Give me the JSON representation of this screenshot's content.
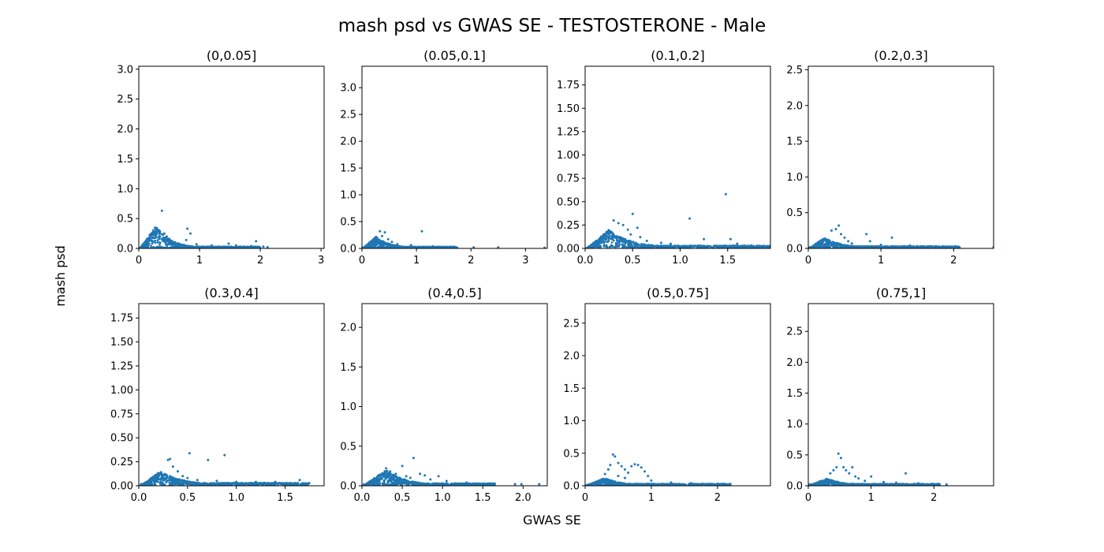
{
  "figure": {
    "title": "mash psd vs GWAS SE - TESTOSTERONE - Male",
    "xlabel": "GWAS SE",
    "ylabel": "mash psd"
  },
  "style": {
    "marker_color": "#1f77b4"
  },
  "chart_data": [
    {
      "type": "scatter",
      "title": "(0,0.05]",
      "xlim": [
        0,
        3.05
      ],
      "ylim": [
        0,
        3.05
      ],
      "xticks": [
        0,
        1,
        2,
        3
      ],
      "xtick_labels": [
        "0",
        "1",
        "2",
        "3"
      ],
      "yticks": [
        0,
        0.5,
        1,
        1.5,
        2,
        2.5,
        3
      ],
      "ytick_labels": [
        "0.0",
        "0.5",
        "1.0",
        "1.5",
        "2.0",
        "2.5",
        "3.0"
      ],
      "dense": {
        "xmin": 0.02,
        "xpeak": 0.28,
        "ypeak": 0.37,
        "xend": 2.0
      },
      "points": [
        [
          0.38,
          0.63
        ],
        [
          0.34,
          0.3
        ],
        [
          0.42,
          0.25
        ],
        [
          0.46,
          0.2
        ],
        [
          0.5,
          0.16
        ],
        [
          0.55,
          0.12
        ],
        [
          0.6,
          0.1
        ],
        [
          0.8,
          0.33
        ],
        [
          0.85,
          0.25
        ],
        [
          0.78,
          0.14
        ],
        [
          0.95,
          0.07
        ],
        [
          1.2,
          0.05
        ],
        [
          1.48,
          0.08
        ],
        [
          1.6,
          0.05
        ],
        [
          1.85,
          0.04
        ],
        [
          1.93,
          0.12
        ],
        [
          2.05,
          0.03
        ],
        [
          2.12,
          0.02
        ]
      ]
    },
    {
      "type": "scatter",
      "title": "(0.05,0.1]",
      "xlim": [
        0,
        3.4
      ],
      "ylim": [
        0,
        3.4
      ],
      "xticks": [
        0,
        1,
        2,
        3
      ],
      "xtick_labels": [
        "0",
        "1",
        "2",
        "3"
      ],
      "yticks": [
        0,
        0.5,
        1,
        1.5,
        2,
        2.5,
        3
      ],
      "ytick_labels": [
        "0.0",
        "0.5",
        "1.0",
        "1.5",
        "2.0",
        "2.5",
        "3.0"
      ],
      "dense": {
        "xmin": 0.02,
        "xpeak": 0.26,
        "ypeak": 0.22,
        "xend": 1.75
      },
      "points": [
        [
          0.33,
          0.32
        ],
        [
          0.42,
          0.3
        ],
        [
          0.37,
          0.23
        ],
        [
          0.48,
          0.17
        ],
        [
          0.55,
          0.12
        ],
        [
          0.65,
          0.08
        ],
        [
          1.1,
          0.32
        ],
        [
          0.9,
          0.06
        ],
        [
          1.3,
          0.04
        ],
        [
          2.05,
          0.02
        ],
        [
          2.5,
          0.02
        ],
        [
          3.35,
          0.01
        ]
      ]
    },
    {
      "type": "scatter",
      "title": "(0.1,0.2]",
      "xlim": [
        0,
        1.95
      ],
      "ylim": [
        0,
        1.95
      ],
      "xticks": [
        0,
        0.5,
        1,
        1.5
      ],
      "xtick_labels": [
        "0.0",
        "0.5",
        "1.0",
        "1.5"
      ],
      "yticks": [
        0,
        0.25,
        0.5,
        0.75,
        1,
        1.25,
        1.5,
        1.75
      ],
      "ytick_labels": [
        "0.00",
        "0.25",
        "0.50",
        "0.75",
        "1.00",
        "1.25",
        "1.50",
        "1.75"
      ],
      "dense": {
        "xmin": 0.02,
        "xpeak": 0.25,
        "ypeak": 0.2,
        "xend": 1.95
      },
      "points": [
        [
          0.3,
          0.3
        ],
        [
          0.35,
          0.27
        ],
        [
          0.4,
          0.25
        ],
        [
          0.45,
          0.2
        ],
        [
          0.5,
          0.37
        ],
        [
          0.55,
          0.22
        ],
        [
          0.48,
          0.15
        ],
        [
          0.58,
          0.12
        ],
        [
          0.65,
          0.08
        ],
        [
          0.8,
          0.06
        ],
        [
          1.1,
          0.32
        ],
        [
          1.48,
          0.58
        ],
        [
          1.53,
          0.1
        ],
        [
          1.25,
          0.1
        ],
        [
          0.9,
          0.05
        ],
        [
          1.6,
          0.05
        ],
        [
          1.75,
          0.03
        ],
        [
          1.9,
          0.02
        ]
      ]
    },
    {
      "type": "scatter",
      "title": "(0.2,0.3]",
      "xlim": [
        0,
        2.55
      ],
      "ylim": [
        0,
        2.55
      ],
      "xticks": [
        0,
        1,
        2
      ],
      "xtick_labels": [
        "0",
        "1",
        "2"
      ],
      "yticks": [
        0,
        0.5,
        1,
        1.5,
        2,
        2.5
      ],
      "ytick_labels": [
        "0.0",
        "0.5",
        "1.0",
        "1.5",
        "2.0",
        "2.5"
      ],
      "dense": {
        "xmin": 0.02,
        "xpeak": 0.22,
        "ypeak": 0.15,
        "xend": 2.1
      },
      "points": [
        [
          0.32,
          0.25
        ],
        [
          0.38,
          0.27
        ],
        [
          0.42,
          0.32
        ],
        [
          0.45,
          0.2
        ],
        [
          0.5,
          0.15
        ],
        [
          0.55,
          0.1
        ],
        [
          0.6,
          0.07
        ],
        [
          0.8,
          0.2
        ],
        [
          0.85,
          0.1
        ],
        [
          1.0,
          0.05
        ],
        [
          1.15,
          0.15
        ],
        [
          1.4,
          0.04
        ],
        [
          1.7,
          0.03
        ],
        [
          2.05,
          0.02
        ],
        [
          2.55,
          0.02
        ]
      ]
    },
    {
      "type": "scatter",
      "title": "(0.3,0.4]",
      "xlim": [
        0,
        1.9
      ],
      "ylim": [
        0,
        1.9
      ],
      "xticks": [
        0,
        0.5,
        1,
        1.5
      ],
      "xtick_labels": [
        "0.0",
        "0.5",
        "1.0",
        "1.5"
      ],
      "yticks": [
        0,
        0.25,
        0.5,
        0.75,
        1,
        1.25,
        1.5,
        1.75
      ],
      "ytick_labels": [
        "0.00",
        "0.25",
        "0.50",
        "0.75",
        "1.00",
        "1.25",
        "1.50",
        "1.75"
      ],
      "dense": {
        "xmin": 0.02,
        "xpeak": 0.22,
        "ypeak": 0.15,
        "xend": 1.75
      },
      "points": [
        [
          0.3,
          0.27
        ],
        [
          0.32,
          0.28
        ],
        [
          0.35,
          0.2
        ],
        [
          0.4,
          0.15
        ],
        [
          0.45,
          0.1
        ],
        [
          0.52,
          0.34
        ],
        [
          0.5,
          0.08
        ],
        [
          0.6,
          0.06
        ],
        [
          0.71,
          0.27
        ],
        [
          0.88,
          0.32
        ],
        [
          0.8,
          0.05
        ],
        [
          1.0,
          0.04
        ],
        [
          1.2,
          0.04
        ],
        [
          1.4,
          0.04
        ],
        [
          1.65,
          0.06
        ],
        [
          1.72,
          0.02
        ]
      ]
    },
    {
      "type": "scatter",
      "title": "(0.4,0.5]",
      "xlim": [
        0,
        2.3
      ],
      "ylim": [
        0,
        2.3
      ],
      "xticks": [
        0,
        0.5,
        1,
        1.5,
        2
      ],
      "xtick_labels": [
        "0.0",
        "0.5",
        "1.0",
        "1.5",
        "2.0"
      ],
      "yticks": [
        0,
        0.5,
        1,
        1.5,
        2
      ],
      "ytick_labels": [
        "0.0",
        "0.5",
        "1.0",
        "1.5",
        "2.0"
      ],
      "dense": {
        "xmin": 0.02,
        "xpeak": 0.3,
        "ypeak": 0.2,
        "xend": 1.65
      },
      "points": [
        [
          0.3,
          0.22
        ],
        [
          0.35,
          0.18
        ],
        [
          0.42,
          0.15
        ],
        [
          0.5,
          0.25
        ],
        [
          0.55,
          0.12
        ],
        [
          0.6,
          0.1
        ],
        [
          0.64,
          0.35
        ],
        [
          0.72,
          0.15
        ],
        [
          0.78,
          0.13
        ],
        [
          0.85,
          0.08
        ],
        [
          0.95,
          0.12
        ],
        [
          1.05,
          0.06
        ],
        [
          1.3,
          0.04
        ],
        [
          1.6,
          0.02
        ],
        [
          1.9,
          0.02
        ],
        [
          1.98,
          0.02
        ],
        [
          2.2,
          0.02
        ]
      ]
    },
    {
      "type": "scatter",
      "title": "(0.5,0.75]",
      "xlim": [
        0,
        2.8
      ],
      "ylim": [
        0,
        2.8
      ],
      "xticks": [
        0,
        1,
        2
      ],
      "xtick_labels": [
        "0",
        "1",
        "2"
      ],
      "yticks": [
        0,
        0.5,
        1,
        1.5,
        2,
        2.5
      ],
      "ytick_labels": [
        "0.0",
        "0.5",
        "1.0",
        "1.5",
        "2.0",
        "2.5"
      ],
      "dense": {
        "xmin": 0.02,
        "xpeak": 0.3,
        "ypeak": 0.12,
        "xend": 2.2
      },
      "points": [
        [
          0.3,
          0.18
        ],
        [
          0.35,
          0.25
        ],
        [
          0.38,
          0.32
        ],
        [
          0.42,
          0.48
        ],
        [
          0.45,
          0.45
        ],
        [
          0.5,
          0.35
        ],
        [
          0.55,
          0.3
        ],
        [
          0.6,
          0.25
        ],
        [
          0.65,
          0.2
        ],
        [
          0.7,
          0.3
        ],
        [
          0.75,
          0.33
        ],
        [
          0.8,
          0.32
        ],
        [
          0.85,
          0.28
        ],
        [
          0.9,
          0.22
        ],
        [
          0.95,
          0.15
        ],
        [
          0.5,
          0.15
        ],
        [
          0.6,
          0.12
        ],
        [
          1.0,
          0.08
        ],
        [
          1.3,
          0.05
        ],
        [
          1.6,
          0.04
        ],
        [
          2.0,
          0.03
        ],
        [
          2.15,
          0.02
        ]
      ]
    },
    {
      "type": "scatter",
      "title": "(0.75,1]",
      "xlim": [
        0,
        2.95
      ],
      "ylim": [
        0,
        2.95
      ],
      "xticks": [
        0,
        1,
        2
      ],
      "xtick_labels": [
        "0",
        "1",
        "2"
      ],
      "yticks": [
        0,
        0.5,
        1,
        1.5,
        2,
        2.5
      ],
      "ytick_labels": [
        "0.0",
        "0.5",
        "1.0",
        "1.5",
        "2.0",
        "2.5"
      ],
      "dense": {
        "xmin": 0.02,
        "xpeak": 0.3,
        "ypeak": 0.12,
        "xend": 2.1
      },
      "points": [
        [
          0.35,
          0.2
        ],
        [
          0.4,
          0.25
        ],
        [
          0.45,
          0.3
        ],
        [
          0.48,
          0.52
        ],
        [
          0.52,
          0.45
        ],
        [
          0.56,
          0.3
        ],
        [
          0.6,
          0.25
        ],
        [
          0.65,
          0.2
        ],
        [
          0.7,
          0.3
        ],
        [
          0.75,
          0.15
        ],
        [
          0.8,
          0.12
        ],
        [
          0.9,
          0.08
        ],
        [
          1.0,
          0.15
        ],
        [
          1.2,
          0.06
        ],
        [
          1.4,
          0.05
        ],
        [
          1.55,
          0.2
        ],
        [
          1.75,
          0.04
        ],
        [
          2.0,
          0.03
        ],
        [
          2.2,
          0.02
        ]
      ]
    }
  ]
}
